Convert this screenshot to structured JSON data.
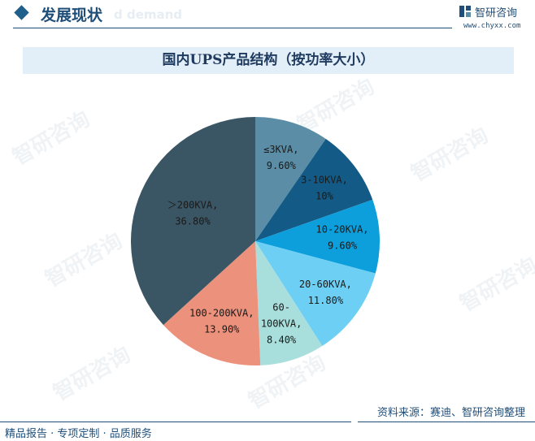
{
  "header": {
    "section_title": "发展现状",
    "section_ghost": "d demand",
    "brand_name": "智研咨询",
    "site": "www.chyxx.com"
  },
  "watermark": "智研咨询",
  "chart_data": {
    "type": "pie",
    "title": "国内UPS产品结构（按功率大小）",
    "start_angle_deg": 0,
    "direction": "clockwise",
    "slices": [
      {
        "label": "≤3KVA,",
        "value_text": "9.60%",
        "value": 9.6,
        "color": "#5b8ea6"
      },
      {
        "label": "3-10KVA,",
        "value_text": "10%",
        "value": 10.0,
        "color": "#135b86"
      },
      {
        "label": "10-20KVA,",
        "value_text": "9.60%",
        "value": 9.6,
        "color": "#0c9fdc"
      },
      {
        "label": "20-60KVA,",
        "value_text": "11.80%",
        "value": 11.8,
        "color": "#6ecff4"
      },
      {
        "label": "60-\n100KVA,",
        "value_text": "8.40%",
        "value": 8.4,
        "color": "#a8dfdc"
      },
      {
        "label": "100-200KVA,",
        "value_text": "13.90%",
        "value": 13.9,
        "color": "#ec917c"
      },
      {
        "label": "＞200KVA,",
        "value_text": "36.80%",
        "value": 36.8,
        "color": "#3a5563"
      }
    ]
  },
  "footer": {
    "left_text": "精品报告 · 专项定制 · 品质服务",
    "source_text": "资料来源：赛迪、智研咨询整理"
  }
}
